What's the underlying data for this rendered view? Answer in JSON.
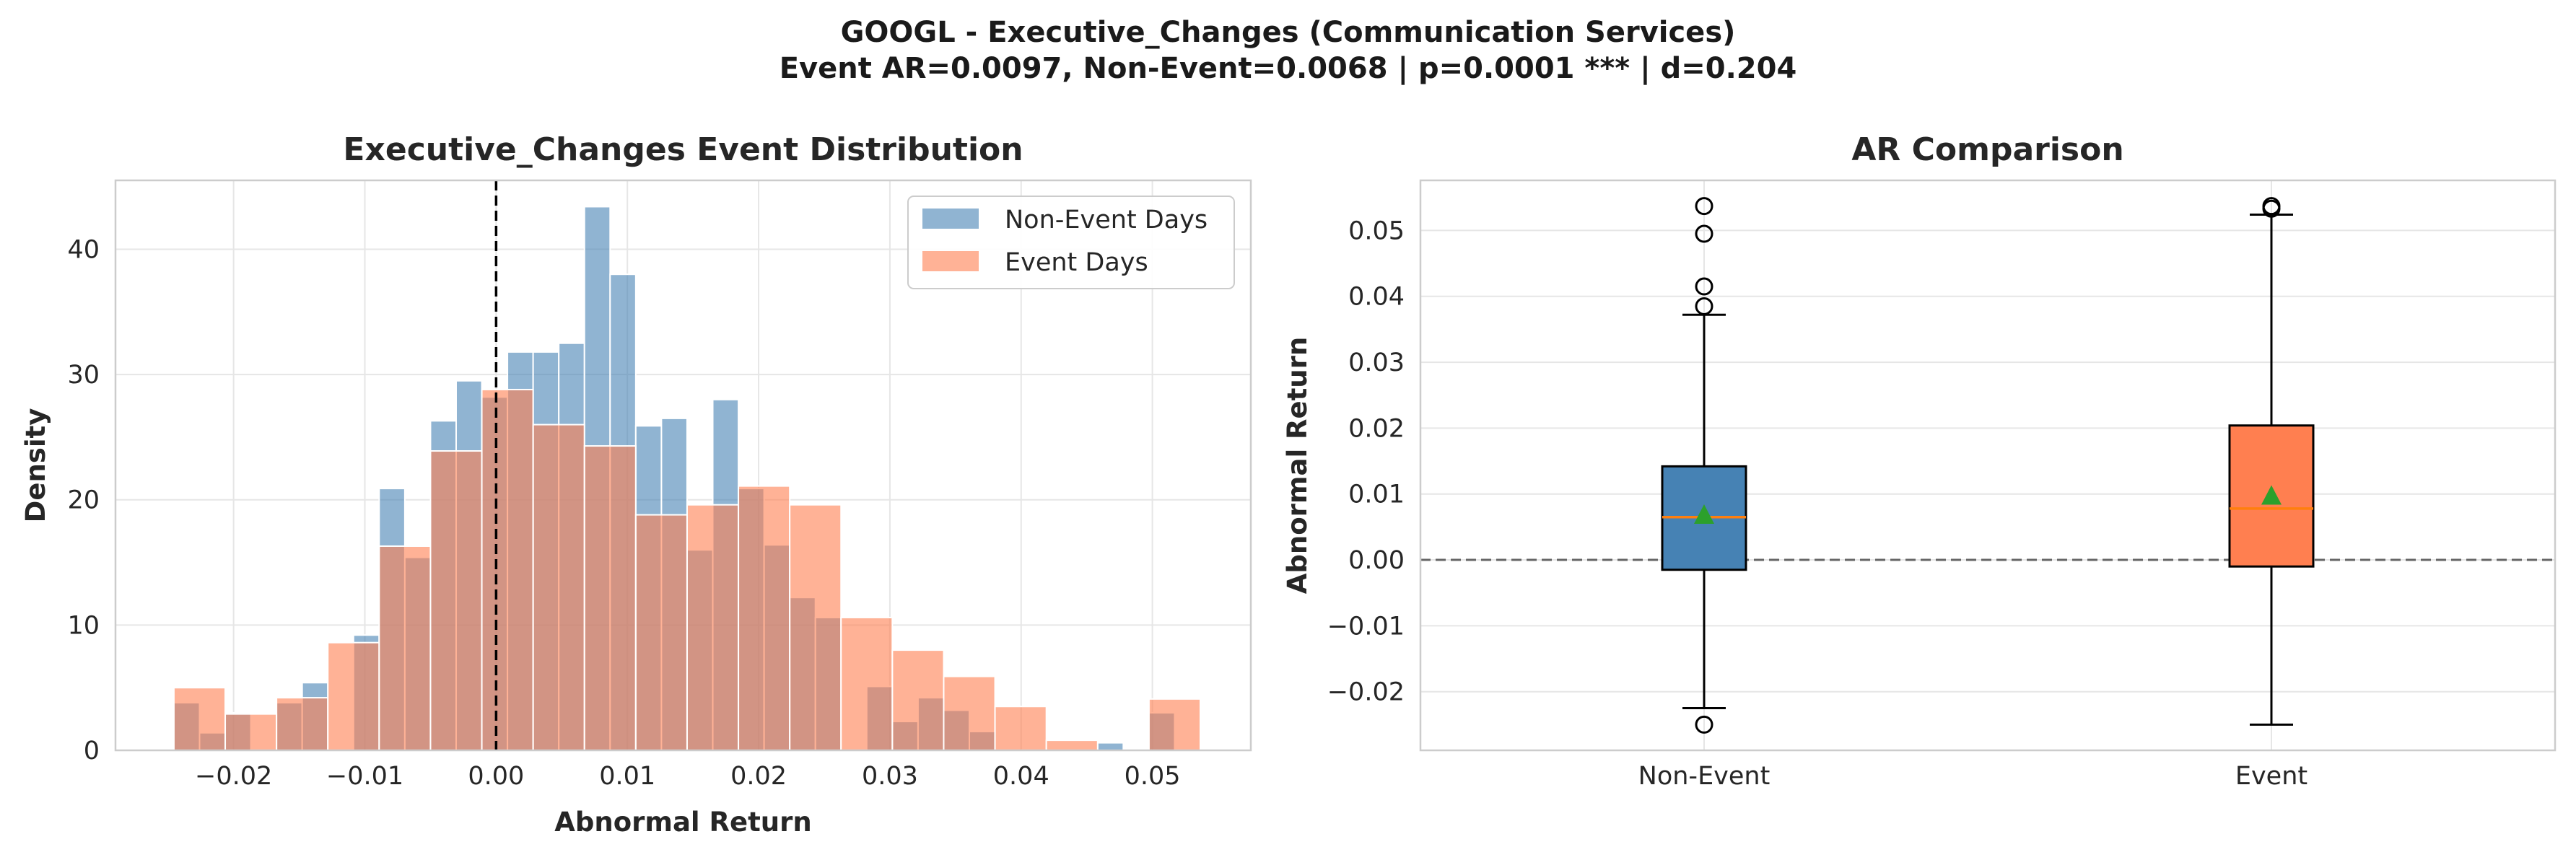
{
  "suptitle": {
    "line1": "GOOGL - Executive_Changes (Communication Services)",
    "line2": "Event AR=0.0097, Non-Event=0.0068 | p=0.0001 *** | d=0.204"
  },
  "colors": {
    "non_event": "#4682b4",
    "event": "#ff7f50",
    "median": "#ff7f0e",
    "mean_marker": "#2ca02c",
    "grid": "#e6e6e6",
    "frame": "#cccccc"
  },
  "chart_data": [
    {
      "type": "histogram",
      "title": "Executive_Changes Event Distribution",
      "xlabel": "Abnormal Return",
      "ylabel": "Density",
      "xlim": [
        -0.029,
        0.0575
      ],
      "ylim": [
        0,
        45.5
      ],
      "xticks": [
        -0.02,
        -0.01,
        0.0,
        0.01,
        0.02,
        0.03,
        0.04,
        0.05
      ],
      "xtick_labels": [
        "−0.02",
        "−0.01",
        "0.00",
        "0.01",
        "0.02",
        "0.03",
        "0.04",
        "0.05"
      ],
      "yticks": [
        0,
        10,
        20,
        30,
        40
      ],
      "ytick_labels": [
        "0",
        "10",
        "20",
        "30",
        "40"
      ],
      "grid": true,
      "legend_position": "top-right",
      "vline": 0.0,
      "series": [
        {
          "name": "Non-Event Days",
          "bin_start": -0.02455,
          "bin_width": 0.001955,
          "values": [
            3.8,
            1.4,
            3.0,
            0.0,
            3.8,
            5.4,
            0.0,
            9.2,
            20.9,
            15.4,
            26.3,
            29.5,
            28.2,
            31.8,
            31.8,
            32.5,
            43.4,
            38.0,
            25.9,
            26.5,
            16.0,
            28.0,
            20.9,
            16.4,
            12.2,
            10.6,
            0.0,
            5.1,
            2.3,
            4.2,
            3.2,
            1.5,
            0.0,
            0.0,
            0.0,
            0.0,
            0.6,
            0.0,
            3.0
          ]
        },
        {
          "name": "Event Days",
          "bin_start": -0.02455,
          "bin_width": 0.00391,
          "values": [
            5.0,
            2.9,
            4.2,
            8.6,
            16.3,
            23.9,
            28.8,
            26.0,
            24.3,
            18.8,
            19.6,
            21.1,
            19.6,
            10.6,
            8.0,
            5.9,
            3.5,
            0.8,
            0.0,
            4.1
          ]
        }
      ]
    },
    {
      "type": "box",
      "title": "AR Comparison",
      "ylabel": "Abnormal Return",
      "categories": [
        "Non-Event",
        "Event"
      ],
      "ylim": [
        -0.0289,
        0.0576
      ],
      "yticks": [
        -0.02,
        -0.01,
        0.0,
        0.01,
        0.02,
        0.03,
        0.04,
        0.05
      ],
      "ytick_labels": [
        "−0.02",
        "−0.01",
        "0.00",
        "0.01",
        "0.02",
        "0.03",
        "0.04",
        "0.05"
      ],
      "grid": true,
      "hline": 0.0,
      "boxes": [
        {
          "name": "Non-Event",
          "q1": -0.0015,
          "median": 0.0065,
          "q3": 0.0142,
          "whisker_low": -0.0225,
          "whisker_high": 0.0372,
          "mean": 0.0068,
          "outliers": [
            0.0537,
            0.0495,
            0.0415,
            0.0385,
            -0.025
          ]
        },
        {
          "name": "Event",
          "q1": -0.001,
          "median": 0.0078,
          "q3": 0.0204,
          "whisker_low": -0.025,
          "whisker_high": 0.0524,
          "mean": 0.0097,
          "outliers": [
            0.0537,
            0.0533
          ]
        }
      ]
    }
  ]
}
